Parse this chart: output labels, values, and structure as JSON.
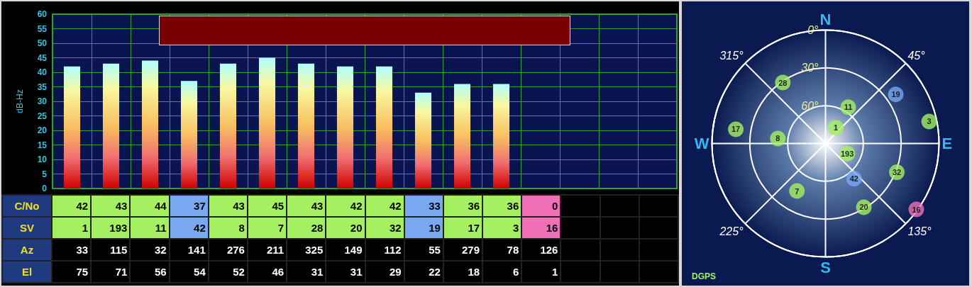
{
  "chart_data": [
    {
      "type": "bar",
      "ylabel": "dB-Hz",
      "categories": [
        "1",
        "193",
        "11",
        "42",
        "8",
        "7",
        "28",
        "20",
        "32",
        "19",
        "17",
        "3",
        "16",
        null,
        null,
        null
      ],
      "values": [
        42,
        43,
        44,
        37,
        43,
        45,
        43,
        42,
        42,
        33,
        36,
        36,
        0,
        null,
        null,
        null
      ],
      "ylim": [
        0,
        60
      ],
      "yticks": [
        0,
        5,
        10,
        15,
        20,
        25,
        30,
        35,
        40,
        45,
        50,
        55,
        60
      ],
      "grid": true,
      "data_labels": true,
      "annotations": [
        "C/No",
        "SV",
        "Az",
        "33",
        "115",
        "32",
        "141",
        "276",
        "211",
        "325",
        "149",
        "112",
        "55",
        "279",
        "78",
        "126",
        "El",
        "75",
        "71",
        "56",
        "54",
        "52",
        "46",
        "31",
        "31",
        "29",
        "22",
        "18",
        "6",
        "1"
      ]
    },
    {
      "type": "other",
      "colors": [
        "#a4f060",
        "#a4f060",
        "#a4f060",
        "#78a8f0",
        "#a4f060",
        "#a4f060",
        "#a4f060",
        "#a4f060",
        "#a4f060",
        "#78a8f0",
        "#a4f060",
        "#a4f060",
        "#f070b8"
      ],
      "annotations": [
        "N",
        "45°",
        "E",
        "135°",
        "S",
        "225°",
        "W",
        "315°",
        "0°",
        "30°",
        "60°",
        "DGPS"
      ]
    }
  ]
}
